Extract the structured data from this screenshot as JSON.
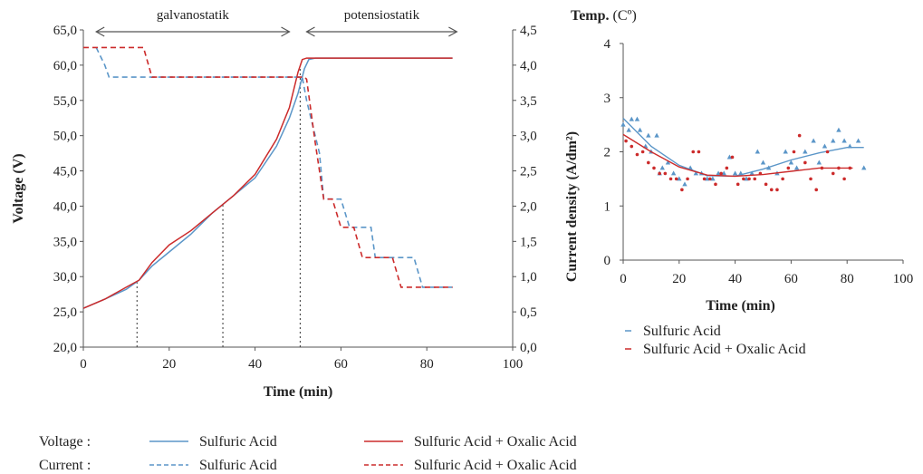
{
  "colors": {
    "sulfuric": "#5b96c8",
    "oxalic": "#cc2b2b",
    "axis": "#555555",
    "text": "#222222"
  },
  "chart_data": [
    {
      "type": "line",
      "xlabel": "Time (min)",
      "ylabel": "Voltage (V)",
      "y2label": "Current density  (A/dm²)",
      "xlim": [
        0,
        100
      ],
      "ylim": [
        20,
        65
      ],
      "y2lim": [
        0,
        4.5
      ],
      "xticks": [
        "0",
        "20",
        "40",
        "60",
        "80",
        "100"
      ],
      "yticks": [
        "20,0",
        "25,0",
        "30,0",
        "35,0",
        "40,0",
        "45,0",
        "50,0",
        "55,0",
        "60,0",
        "65,0"
      ],
      "y2ticks": [
        "0,0",
        "0,5",
        "1,0",
        "1,5",
        "2,0",
        "2,5",
        "3,0",
        "3,5",
        "4,0",
        "4,5"
      ],
      "grid": false,
      "regions": [
        {
          "label": "galvanostatik",
          "x_start": 3,
          "x_end": 48
        },
        {
          "label": "potensiostatik",
          "x_start": 52,
          "x_end": 87
        }
      ],
      "markers_x": [
        12.5,
        32.5,
        50.5
      ],
      "series": [
        {
          "name": "Sulfuric Acid",
          "measure": "Voltage",
          "axis": "left",
          "style": "solid",
          "color": "sulfuric",
          "points": [
            [
              0,
              25.5
            ],
            [
              5,
              26.8
            ],
            [
              10,
              28.2
            ],
            [
              13,
              29.5
            ],
            [
              16,
              31.5
            ],
            [
              20,
              33.5
            ],
            [
              25,
              36
            ],
            [
              30,
              39
            ],
            [
              35,
              41.5
            ],
            [
              40,
              44
            ],
            [
              45,
              48.5
            ],
            [
              48,
              52.5
            ],
            [
              50,
              56
            ],
            [
              51.5,
              59.5
            ],
            [
              52.5,
              60.8
            ],
            [
              54,
              61
            ],
            [
              86,
              61
            ]
          ]
        },
        {
          "name": "Sulfuric Acid + Oxalic Acid",
          "measure": "Voltage",
          "axis": "left",
          "style": "solid",
          "color": "oxalic",
          "points": [
            [
              0,
              25.5
            ],
            [
              5,
              26.8
            ],
            [
              10,
              28.5
            ],
            [
              13,
              29.5
            ],
            [
              16,
              32
            ],
            [
              20,
              34.5
            ],
            [
              25,
              36.5
            ],
            [
              30,
              39
            ],
            [
              35,
              41.5
            ],
            [
              40,
              44.5
            ],
            [
              45,
              49.5
            ],
            [
              48,
              54
            ],
            [
              50,
              59
            ],
            [
              51,
              60.8
            ],
            [
              52,
              61
            ],
            [
              86,
              61
            ]
          ]
        },
        {
          "name": "Sulfuric Acid",
          "measure": "Current",
          "axis": "right",
          "style": "dashed",
          "color": "sulfuric",
          "points": [
            [
              3,
              4.25
            ],
            [
              5,
              4.0
            ],
            [
              6,
              3.83
            ],
            [
              51,
              3.83
            ],
            [
              52,
              3.5
            ],
            [
              55,
              2.75
            ],
            [
              56,
              2.1
            ],
            [
              60,
              2.1
            ],
            [
              62,
              1.7
            ],
            [
              67,
              1.7
            ],
            [
              68,
              1.27
            ],
            [
              77,
              1.27
            ],
            [
              79,
              0.85
            ],
            [
              86,
              0.85
            ]
          ]
        },
        {
          "name": "Sulfuric Acid + Oxalic Acid",
          "measure": "Current",
          "axis": "right",
          "style": "dashed",
          "color": "oxalic",
          "points": [
            [
              0,
              4.25
            ],
            [
              14,
              4.25
            ],
            [
              16,
              3.83
            ],
            [
              51.5,
              3.83
            ],
            [
              52,
              3.8
            ],
            [
              54,
              2.9
            ],
            [
              56,
              2.1
            ],
            [
              58,
              2.1
            ],
            [
              60,
              1.7
            ],
            [
              63,
              1.7
            ],
            [
              65,
              1.27
            ],
            [
              72,
              1.27
            ],
            [
              74,
              0.85
            ],
            [
              86,
              0.85
            ]
          ]
        }
      ]
    },
    {
      "type": "scatter",
      "title": "Temp.",
      "title_unit": "(Cº)",
      "xlabel": "Time (min)",
      "ylabel": "",
      "xlim": [
        0,
        100
      ],
      "ylim": [
        0,
        4
      ],
      "xticks": [
        "0",
        "20",
        "40",
        "60",
        "80",
        "100"
      ],
      "yticks": [
        "0",
        "1",
        "2",
        "3",
        "4"
      ],
      "grid": false,
      "legend_position": "bottom",
      "series": [
        {
          "name": "Sulfuric Acid",
          "marker": "triangle",
          "color": "sulfuric",
          "points": [
            [
              0,
              2.5
            ],
            [
              2,
              2.4
            ],
            [
              3,
              2.6
            ],
            [
              5,
              2.6
            ],
            [
              6,
              2.4
            ],
            [
              8,
              2.1
            ],
            [
              9,
              2.3
            ],
            [
              10,
              2.0
            ],
            [
              12,
              2.3
            ],
            [
              13,
              1.6
            ],
            [
              14,
              1.7
            ],
            [
              16,
              1.8
            ],
            [
              18,
              1.6
            ],
            [
              20,
              1.5
            ],
            [
              22,
              1.4
            ],
            [
              24,
              1.7
            ],
            [
              26,
              1.6
            ],
            [
              28,
              1.6
            ],
            [
              30,
              1.5
            ],
            [
              32,
              1.5
            ],
            [
              34,
              1.6
            ],
            [
              36,
              1.6
            ],
            [
              38,
              1.9
            ],
            [
              40,
              1.6
            ],
            [
              42,
              1.6
            ],
            [
              44,
              1.5
            ],
            [
              46,
              1.6
            ],
            [
              48,
              2.0
            ],
            [
              50,
              1.8
            ],
            [
              52,
              1.7
            ],
            [
              55,
              1.6
            ],
            [
              58,
              2.0
            ],
            [
              60,
              1.8
            ],
            [
              62,
              1.7
            ],
            [
              65,
              2.0
            ],
            [
              68,
              2.2
            ],
            [
              70,
              1.8
            ],
            [
              72,
              2.1
            ],
            [
              75,
              2.2
            ],
            [
              77,
              2.4
            ],
            [
              79,
              2.2
            ],
            [
              81,
              2.1
            ],
            [
              84,
              2.2
            ],
            [
              86,
              1.7
            ]
          ],
          "trend": [
            [
              0,
              2.62
            ],
            [
              10,
              2.1
            ],
            [
              20,
              1.75
            ],
            [
              30,
              1.56
            ],
            [
              40,
              1.55
            ],
            [
              50,
              1.68
            ],
            [
              60,
              1.85
            ],
            [
              70,
              1.98
            ],
            [
              80,
              2.08
            ],
            [
              86,
              2.08
            ]
          ]
        },
        {
          "name": "Sulfuric Acid + Oxalic Acid",
          "marker": "dot",
          "color": "oxalic",
          "points": [
            [
              1,
              2.2
            ],
            [
              3,
              2.1
            ],
            [
              5,
              1.95
            ],
            [
              7,
              2.0
            ],
            [
              9,
              1.8
            ],
            [
              11,
              1.7
            ],
            [
              13,
              1.6
            ],
            [
              15,
              1.6
            ],
            [
              17,
              1.5
            ],
            [
              19,
              1.5
            ],
            [
              21,
              1.3
            ],
            [
              23,
              1.5
            ],
            [
              25,
              2.0
            ],
            [
              27,
              2.0
            ],
            [
              29,
              1.5
            ],
            [
              31,
              1.5
            ],
            [
              33,
              1.4
            ],
            [
              35,
              1.6
            ],
            [
              37,
              1.7
            ],
            [
              39,
              1.9
            ],
            [
              41,
              1.4
            ],
            [
              43,
              1.5
            ],
            [
              45,
              1.5
            ],
            [
              47,
              1.5
            ],
            [
              49,
              1.6
            ],
            [
              51,
              1.4
            ],
            [
              53,
              1.3
            ],
            [
              55,
              1.3
            ],
            [
              57,
              1.5
            ],
            [
              59,
              1.7
            ],
            [
              61,
              2.0
            ],
            [
              63,
              2.3
            ],
            [
              65,
              1.8
            ],
            [
              67,
              1.5
            ],
            [
              69,
              1.3
            ],
            [
              71,
              1.7
            ],
            [
              73,
              2.0
            ],
            [
              75,
              1.6
            ],
            [
              77,
              1.7
            ],
            [
              79,
              1.5
            ],
            [
              81,
              1.7
            ]
          ],
          "trend": [
            [
              0,
              2.32
            ],
            [
              10,
              2.0
            ],
            [
              20,
              1.72
            ],
            [
              30,
              1.57
            ],
            [
              40,
              1.55
            ],
            [
              50,
              1.58
            ],
            [
              60,
              1.64
            ],
            [
              70,
              1.7
            ],
            [
              80,
              1.7
            ],
            [
              82,
              1.7
            ]
          ]
        }
      ]
    }
  ],
  "bottom_legend": {
    "rows": [
      {
        "label": "Voltage   :",
        "style": "solid",
        "items": [
          {
            "name": "Sulfuric Acid",
            "color": "sulfuric"
          },
          {
            "name": "Sulfuric Acid + Oxalic Acid",
            "color": "oxalic"
          }
        ]
      },
      {
        "label": "Current   :",
        "style": "dashed",
        "items": [
          {
            "name": "Sulfuric Acid",
            "color": "sulfuric"
          },
          {
            "name": "Sulfuric Acid + Oxalic Acid",
            "color": "oxalic"
          }
        ]
      }
    ]
  }
}
